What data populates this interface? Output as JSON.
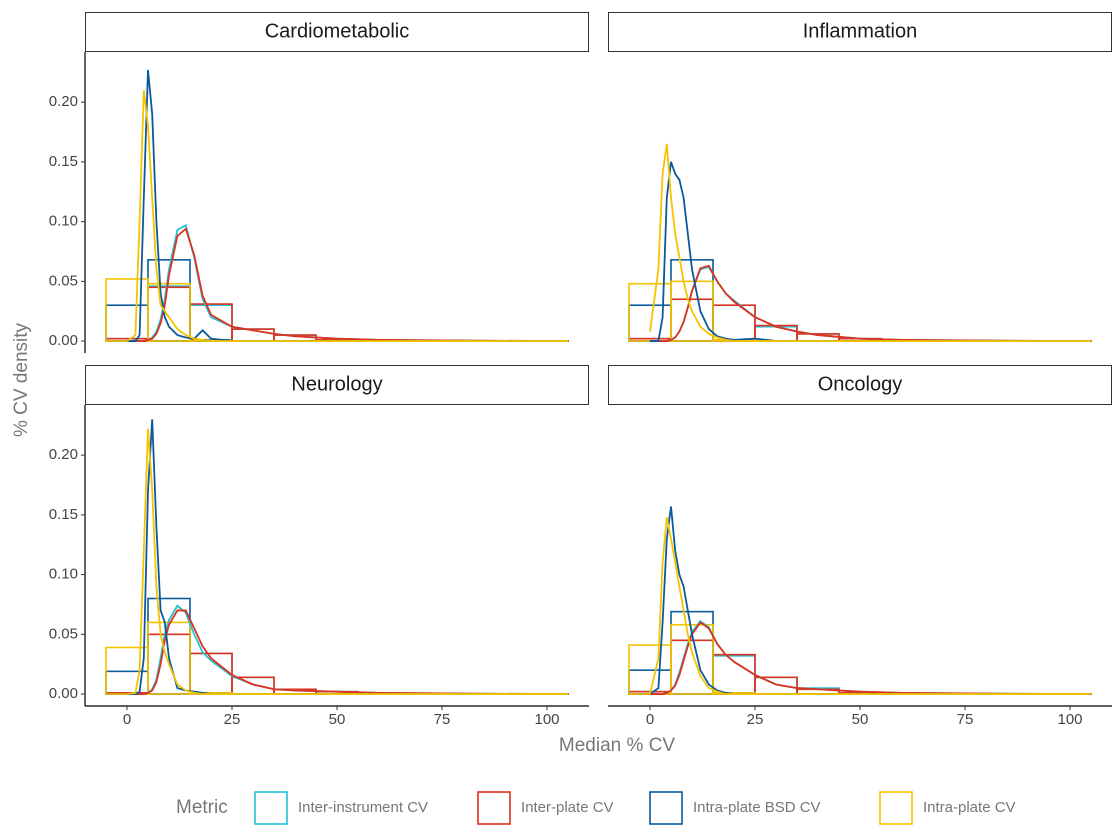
{
  "chart_data": {
    "type": "histogram",
    "x_label": "Median % CV",
    "y_label": "% CV density",
    "legend_title": "Metric",
    "legend": "bottom",
    "xlim": [
      -10,
      110
    ],
    "xticks": [
      0,
      25,
      50,
      75,
      100
    ],
    "ylim": [
      -0.01,
      0.242
    ],
    "yticks": [
      {
        "value": 0,
        "label": "0.00"
      },
      {
        "value": 0.05,
        "label": "0.05"
      },
      {
        "value": 0.1,
        "label": "0.10"
      },
      {
        "value": 0.15,
        "label": "0.15"
      },
      {
        "value": 0.2,
        "label": "0.20"
      }
    ],
    "bins": [
      -5,
      5,
      15,
      25,
      35,
      45,
      55,
      65,
      75,
      85,
      95,
      105
    ],
    "density_x": [
      0,
      2,
      3,
      4,
      5,
      6,
      7,
      8,
      9,
      10,
      12,
      14,
      16,
      18,
      20,
      25,
      30,
      35,
      40,
      50,
      60,
      75,
      100,
      105
    ],
    "series": [
      {
        "name": "Inter-instrument CV",
        "color": "#1fc3d8"
      },
      {
        "name": "Inter-plate CV",
        "color": "#e0301e"
      },
      {
        "name": "Intra-plate BSD CV",
        "color": "#0a5a9c"
      },
      {
        "name": "Intra-plate CV",
        "color": "#f5c300"
      }
    ],
    "panels": [
      {
        "title": "Cardiometabolic",
        "series": [
          {
            "counts": [
              0.002,
              0.046,
              0.03,
              0.01,
              0.005,
              0.001,
              0.0005,
              0.0003,
              0.0002,
              0.0001,
              0.0001
            ],
            "density": [
              0,
              0,
              0,
              0,
              0.001,
              0.003,
              0.008,
              0.018,
              0.035,
              0.06,
              0.093,
              0.097,
              0.07,
              0.035,
              0.02,
              0.012,
              0.009,
              0.006,
              0.004,
              0.002,
              0.001,
              0.0005,
              0,
              0
            ]
          },
          {
            "counts": [
              0.002,
              0.045,
              0.031,
              0.01,
              0.005,
              0.001,
              0.0005,
              0.0003,
              0.0002,
              0.0001,
              0.0001
            ],
            "density": [
              0,
              0,
              0,
              0,
              0.001,
              0.002,
              0.006,
              0.015,
              0.03,
              0.055,
              0.088,
              0.094,
              0.072,
              0.038,
              0.022,
              0.012,
              0.009,
              0.006,
              0.004,
              0.002,
              0.001,
              0.0005,
              0,
              0
            ]
          },
          {
            "counts": [
              0.03,
              0.068,
              0.001,
              0,
              0,
              0,
              0,
              0,
              0,
              0,
              0
            ],
            "density": [
              0,
              0,
              0.005,
              0.12,
              0.227,
              0.19,
              0.1,
              0.04,
              0.02,
              0.012,
              0.005,
              0.003,
              0.002,
              0.009,
              0.002,
              0,
              0,
              0,
              0,
              0,
              0,
              0,
              0,
              0
            ]
          },
          {
            "counts": [
              0.052,
              0.048,
              0.0005,
              0,
              0,
              0,
              0,
              0,
              0,
              0,
              0
            ],
            "density": [
              0,
              0.005,
              0.1,
              0.21,
              0.18,
              0.12,
              0.06,
              0.03,
              0.025,
              0.02,
              0.01,
              0.005,
              0.002,
              0.001,
              0,
              0,
              0,
              0,
              0,
              0,
              0,
              0,
              0,
              0
            ]
          }
        ]
      },
      {
        "title": "Inflammation",
        "series": [
          {
            "counts": [
              0.002,
              0.035,
              0.03,
              0.012,
              0.006,
              0.002,
              0.0005,
              0.0003,
              0.0002,
              0.0001,
              0.0001
            ],
            "density": [
              0,
              0,
              0,
              0,
              0.001,
              0.003,
              0.008,
              0.016,
              0.028,
              0.042,
              0.06,
              0.062,
              0.05,
              0.04,
              0.034,
              0.02,
              0.012,
              0.008,
              0.005,
              0.002,
              0.001,
              0.0005,
              0,
              0
            ]
          },
          {
            "counts": [
              0.002,
              0.035,
              0.03,
              0.013,
              0.006,
              0.002,
              0.0005,
              0.0003,
              0.0002,
              0.0001,
              0.0001
            ],
            "density": [
              0,
              0,
              0,
              0,
              0.001,
              0.003,
              0.008,
              0.016,
              0.028,
              0.042,
              0.061,
              0.063,
              0.05,
              0.04,
              0.033,
              0.02,
              0.012,
              0.008,
              0.005,
              0.002,
              0.001,
              0.0005,
              0,
              0
            ]
          },
          {
            "counts": [
              0.03,
              0.068,
              0.001,
              0,
              0,
              0,
              0,
              0,
              0,
              0,
              0
            ],
            "density": [
              0,
              0,
              0.02,
              0.12,
              0.15,
              0.14,
              0.135,
              0.12,
              0.09,
              0.06,
              0.025,
              0.01,
              0.004,
              0.002,
              0.001,
              0.002,
              0,
              0,
              0,
              0,
              0,
              0,
              0,
              0
            ]
          },
          {
            "counts": [
              0.048,
              0.05,
              0.001,
              0,
              0,
              0,
              0,
              0,
              0,
              0,
              0
            ],
            "density": [
              0.008,
              0.06,
              0.14,
              0.165,
              0.12,
              0.09,
              0.07,
              0.05,
              0.035,
              0.025,
              0.012,
              0.006,
              0.003,
              0.001,
              0,
              0,
              0,
              0,
              0,
              0,
              0,
              0,
              0,
              0
            ]
          }
        ]
      },
      {
        "title": "Neurology",
        "series": [
          {
            "counts": [
              0.001,
              0.05,
              0.034,
              0.014,
              0.004,
              0.002,
              0.0005,
              0.0003,
              0.0002,
              0.0001,
              0.0001
            ],
            "density": [
              0,
              0,
              0,
              0,
              0.001,
              0.004,
              0.012,
              0.03,
              0.05,
              0.062,
              0.074,
              0.068,
              0.05,
              0.035,
              0.028,
              0.015,
              0.008,
              0.004,
              0.003,
              0.002,
              0.001,
              0.0005,
              0,
              0
            ]
          },
          {
            "counts": [
              0.001,
              0.05,
              0.034,
              0.014,
              0.004,
              0.002,
              0.0005,
              0.0003,
              0.0002,
              0.0001,
              0.0001
            ],
            "density": [
              0,
              0,
              0,
              0,
              0.001,
              0.003,
              0.01,
              0.025,
              0.045,
              0.058,
              0.07,
              0.07,
              0.055,
              0.04,
              0.03,
              0.016,
              0.008,
              0.004,
              0.003,
              0.002,
              0.001,
              0.0005,
              0,
              0
            ]
          },
          {
            "counts": [
              0.019,
              0.08,
              0.001,
              0,
              0,
              0,
              0,
              0,
              0,
              0,
              0
            ],
            "density": [
              0,
              0,
              0.002,
              0.03,
              0.17,
              0.23,
              0.14,
              0.07,
              0.06,
              0.03,
              0.005,
              0.003,
              0.002,
              0.001,
              0,
              0,
              0,
              0,
              0,
              0,
              0,
              0,
              0,
              0
            ]
          },
          {
            "counts": [
              0.039,
              0.06,
              0.001,
              0,
              0,
              0,
              0,
              0,
              0,
              0,
              0
            ],
            "density": [
              0,
              0.001,
              0.02,
              0.12,
              0.222,
              0.17,
              0.09,
              0.05,
              0.035,
              0.025,
              0.008,
              0.003,
              0.001,
              0,
              0,
              0,
              0,
              0,
              0,
              0,
              0,
              0,
              0,
              0
            ]
          }
        ]
      },
      {
        "title": "Oncology",
        "series": [
          {
            "counts": [
              0.002,
              0.045,
              0.032,
              0.014,
              0.005,
              0.001,
              0.0005,
              0.0003,
              0.0002,
              0.0001,
              0.0001
            ],
            "density": [
              0,
              0,
              0,
              0.001,
              0.003,
              0.008,
              0.018,
              0.03,
              0.042,
              0.052,
              0.061,
              0.056,
              0.042,
              0.033,
              0.027,
              0.016,
              0.008,
              0.005,
              0.004,
              0.002,
              0.001,
              0.0005,
              0,
              0
            ]
          },
          {
            "counts": [
              0.002,
              0.045,
              0.033,
              0.014,
              0.004,
              0.001,
              0.0005,
              0.0003,
              0.0002,
              0.0001,
              0.0001
            ],
            "density": [
              0,
              0,
              0,
              0.001,
              0.003,
              0.007,
              0.016,
              0.028,
              0.04,
              0.05,
              0.06,
              0.055,
              0.042,
              0.033,
              0.027,
              0.016,
              0.008,
              0.005,
              0.004,
              0.002,
              0.001,
              0.0005,
              0,
              0
            ]
          },
          {
            "counts": [
              0.02,
              0.069,
              0.001,
              0,
              0,
              0,
              0,
              0,
              0,
              0,
              0
            ],
            "density": [
              0,
              0.005,
              0.06,
              0.13,
              0.157,
              0.12,
              0.1,
              0.09,
              0.07,
              0.05,
              0.02,
              0.008,
              0.003,
              0.001,
              0,
              0,
              0,
              0,
              0,
              0,
              0,
              0,
              0,
              0
            ]
          },
          {
            "counts": [
              0.041,
              0.058,
              0.001,
              0,
              0,
              0,
              0,
              0,
              0,
              0,
              0
            ],
            "density": [
              0,
              0.03,
              0.11,
              0.148,
              0.13,
              0.11,
              0.09,
              0.07,
              0.05,
              0.035,
              0.015,
              0.005,
              0.002,
              0,
              0,
              0,
              0,
              0,
              0,
              0,
              0,
              0,
              0,
              0
            ]
          }
        ]
      }
    ]
  }
}
